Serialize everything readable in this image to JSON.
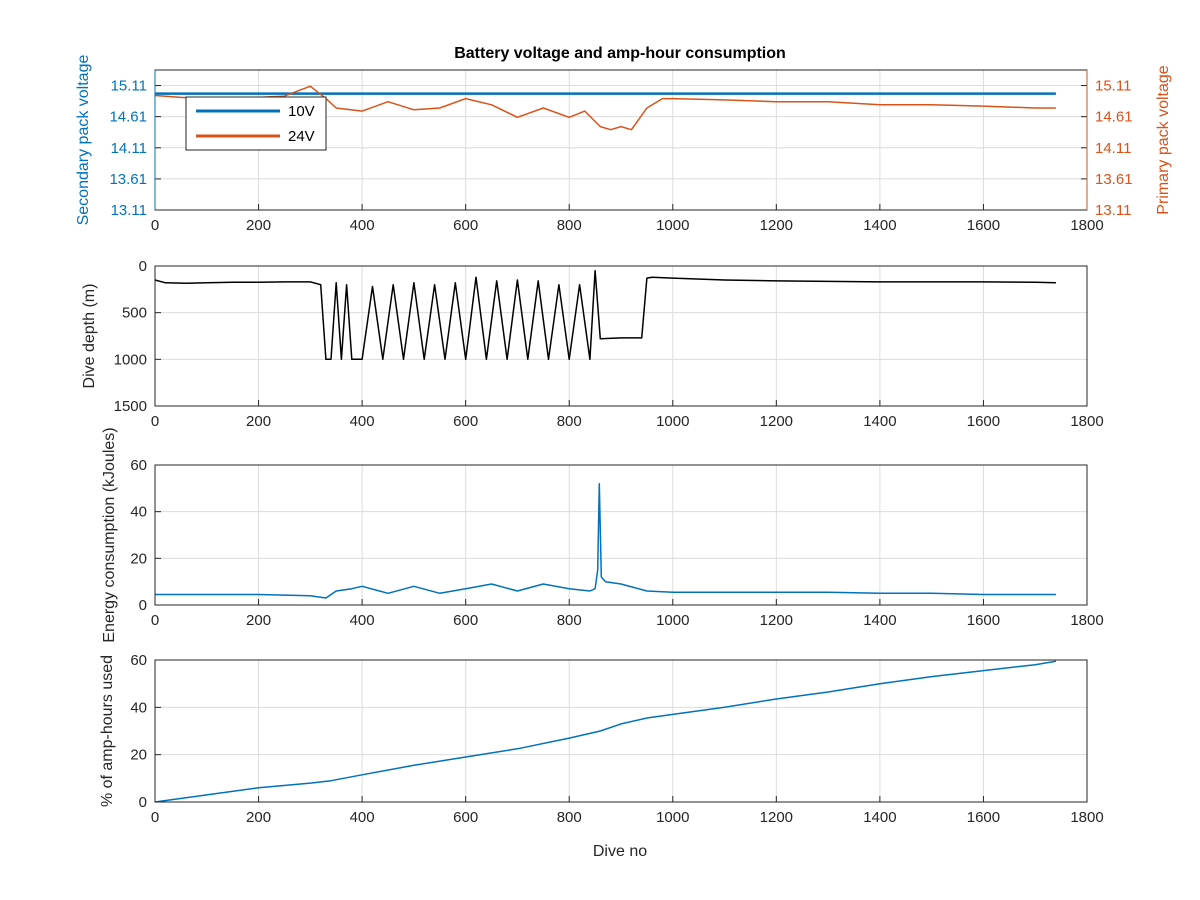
{
  "colors": {
    "blue": "#0072bd",
    "orange": "#d95319",
    "black": "#000000",
    "axis": "#262626"
  },
  "chart_data": [
    {
      "type": "line",
      "title": "Battery voltage and amp-hour consumption",
      "xlabel": "",
      "ylabel_left": "Secondary pack voltage",
      "ylabel_right": "Primary pack voltage",
      "xlim": [
        0,
        1800
      ],
      "ylim": [
        13.11,
        15.36
      ],
      "xticks": [
        "0",
        "200",
        "400",
        "600",
        "800",
        "1000",
        "1200",
        "1400",
        "1600",
        "1800"
      ],
      "yticks_left": [
        "13.11",
        "13.61",
        "14.11",
        "14.61",
        "15.11"
      ],
      "yticks_right": [
        "13.11",
        "13.61",
        "14.11",
        "14.61",
        "15.11"
      ],
      "grid": true,
      "legend": {
        "placement": "top-left",
        "entries": [
          "10V",
          "24V"
        ]
      },
      "series": [
        {
          "name": "10V",
          "axis": "left",
          "x": [
            0,
            1740
          ],
          "values": [
            14.98,
            14.98
          ]
        },
        {
          "name": "24V",
          "axis": "right",
          "x": [
            0,
            50,
            100,
            200,
            250,
            300,
            330,
            350,
            400,
            450,
            500,
            550,
            600,
            650,
            700,
            750,
            800,
            830,
            860,
            880,
            900,
            920,
            950,
            980,
            1000,
            1100,
            1200,
            1300,
            1400,
            1500,
            1600,
            1700,
            1740
          ],
          "values": [
            14.95,
            14.92,
            14.9,
            14.92,
            14.94,
            15.1,
            14.9,
            14.75,
            14.7,
            14.85,
            14.72,
            14.75,
            14.9,
            14.8,
            14.6,
            14.75,
            14.6,
            14.7,
            14.45,
            14.4,
            14.45,
            14.4,
            14.75,
            14.9,
            14.9,
            14.88,
            14.85,
            14.85,
            14.8,
            14.8,
            14.78,
            14.75,
            14.75
          ]
        }
      ]
    },
    {
      "type": "line",
      "xlabel": "",
      "ylabel": "Dive depth (m)",
      "xlim": [
        0,
        1800
      ],
      "ylim": [
        1500,
        0
      ],
      "xticks": [
        "0",
        "200",
        "400",
        "600",
        "800",
        "1000",
        "1200",
        "1400",
        "1600",
        "1800"
      ],
      "yticks": [
        "0",
        "500",
        "1000",
        "1500"
      ],
      "grid": true,
      "series": [
        {
          "x": [
            0,
            20,
            60,
            100,
            150,
            200,
            250,
            300,
            320,
            330,
            340,
            350,
            360,
            370,
            380,
            400,
            420,
            440,
            460,
            480,
            500,
            520,
            540,
            560,
            580,
            600,
            620,
            640,
            660,
            680,
            700,
            720,
            740,
            760,
            780,
            800,
            820,
            840,
            850,
            860,
            900,
            940,
            950,
            960,
            1000,
            1100,
            1200,
            1300,
            1400,
            1500,
            1600,
            1700,
            1740
          ],
          "values": [
            150,
            180,
            185,
            180,
            175,
            175,
            170,
            170,
            200,
            1000,
            1000,
            180,
            1000,
            200,
            1000,
            1000,
            220,
            1000,
            200,
            1000,
            180,
            1000,
            200,
            1000,
            180,
            1000,
            120,
            1000,
            160,
            1000,
            150,
            1000,
            160,
            1000,
            200,
            1000,
            200,
            1000,
            50,
            780,
            770,
            770,
            130,
            120,
            130,
            150,
            160,
            165,
            170,
            170,
            170,
            175,
            180
          ]
        }
      ]
    },
    {
      "type": "line",
      "xlabel": "",
      "ylabel": "Energy consumption (kJoules)",
      "xlim": [
        0,
        1800
      ],
      "ylim": [
        0,
        60
      ],
      "xticks": [
        "0",
        "200",
        "400",
        "600",
        "800",
        "1000",
        "1200",
        "1400",
        "1600",
        "1800"
      ],
      "yticks": [
        "0",
        "20",
        "40",
        "60"
      ],
      "grid": true,
      "series": [
        {
          "x": [
            0,
            100,
            200,
            300,
            330,
            350,
            380,
            400,
            450,
            500,
            550,
            600,
            650,
            700,
            750,
            800,
            840,
            850,
            855,
            858,
            862,
            870,
            900,
            950,
            1000,
            1100,
            1200,
            1300,
            1400,
            1500,
            1600,
            1700,
            1740
          ],
          "values": [
            4.5,
            4.5,
            4.5,
            4,
            3,
            6,
            7,
            8,
            5,
            8,
            5,
            7,
            9,
            6,
            9,
            7,
            6,
            7,
            15,
            52,
            12,
            10,
            9,
            6,
            5.5,
            5.5,
            5.5,
            5.5,
            5,
            5,
            4.5,
            4.5,
            4.5
          ]
        }
      ]
    },
    {
      "type": "line",
      "xlabel": "Dive no",
      "ylabel": "% of amp-hours used",
      "xlim": [
        0,
        1800
      ],
      "ylim": [
        0,
        60
      ],
      "xticks": [
        "0",
        "200",
        "400",
        "600",
        "800",
        "1000",
        "1200",
        "1400",
        "1600",
        "1800"
      ],
      "yticks": [
        "0",
        "20",
        "40",
        "60"
      ],
      "grid": true,
      "series": [
        {
          "x": [
            0,
            100,
            200,
            300,
            340,
            400,
            500,
            600,
            700,
            800,
            860,
            900,
            950,
            1000,
            1100,
            1200,
            1300,
            1400,
            1500,
            1600,
            1700,
            1740
          ],
          "values": [
            0,
            3,
            6,
            8,
            9,
            11.5,
            15.5,
            19,
            22.5,
            27,
            30,
            33,
            35.5,
            37,
            40,
            43.5,
            46.5,
            50,
            53,
            55.5,
            58,
            59.5
          ]
        }
      ]
    }
  ]
}
